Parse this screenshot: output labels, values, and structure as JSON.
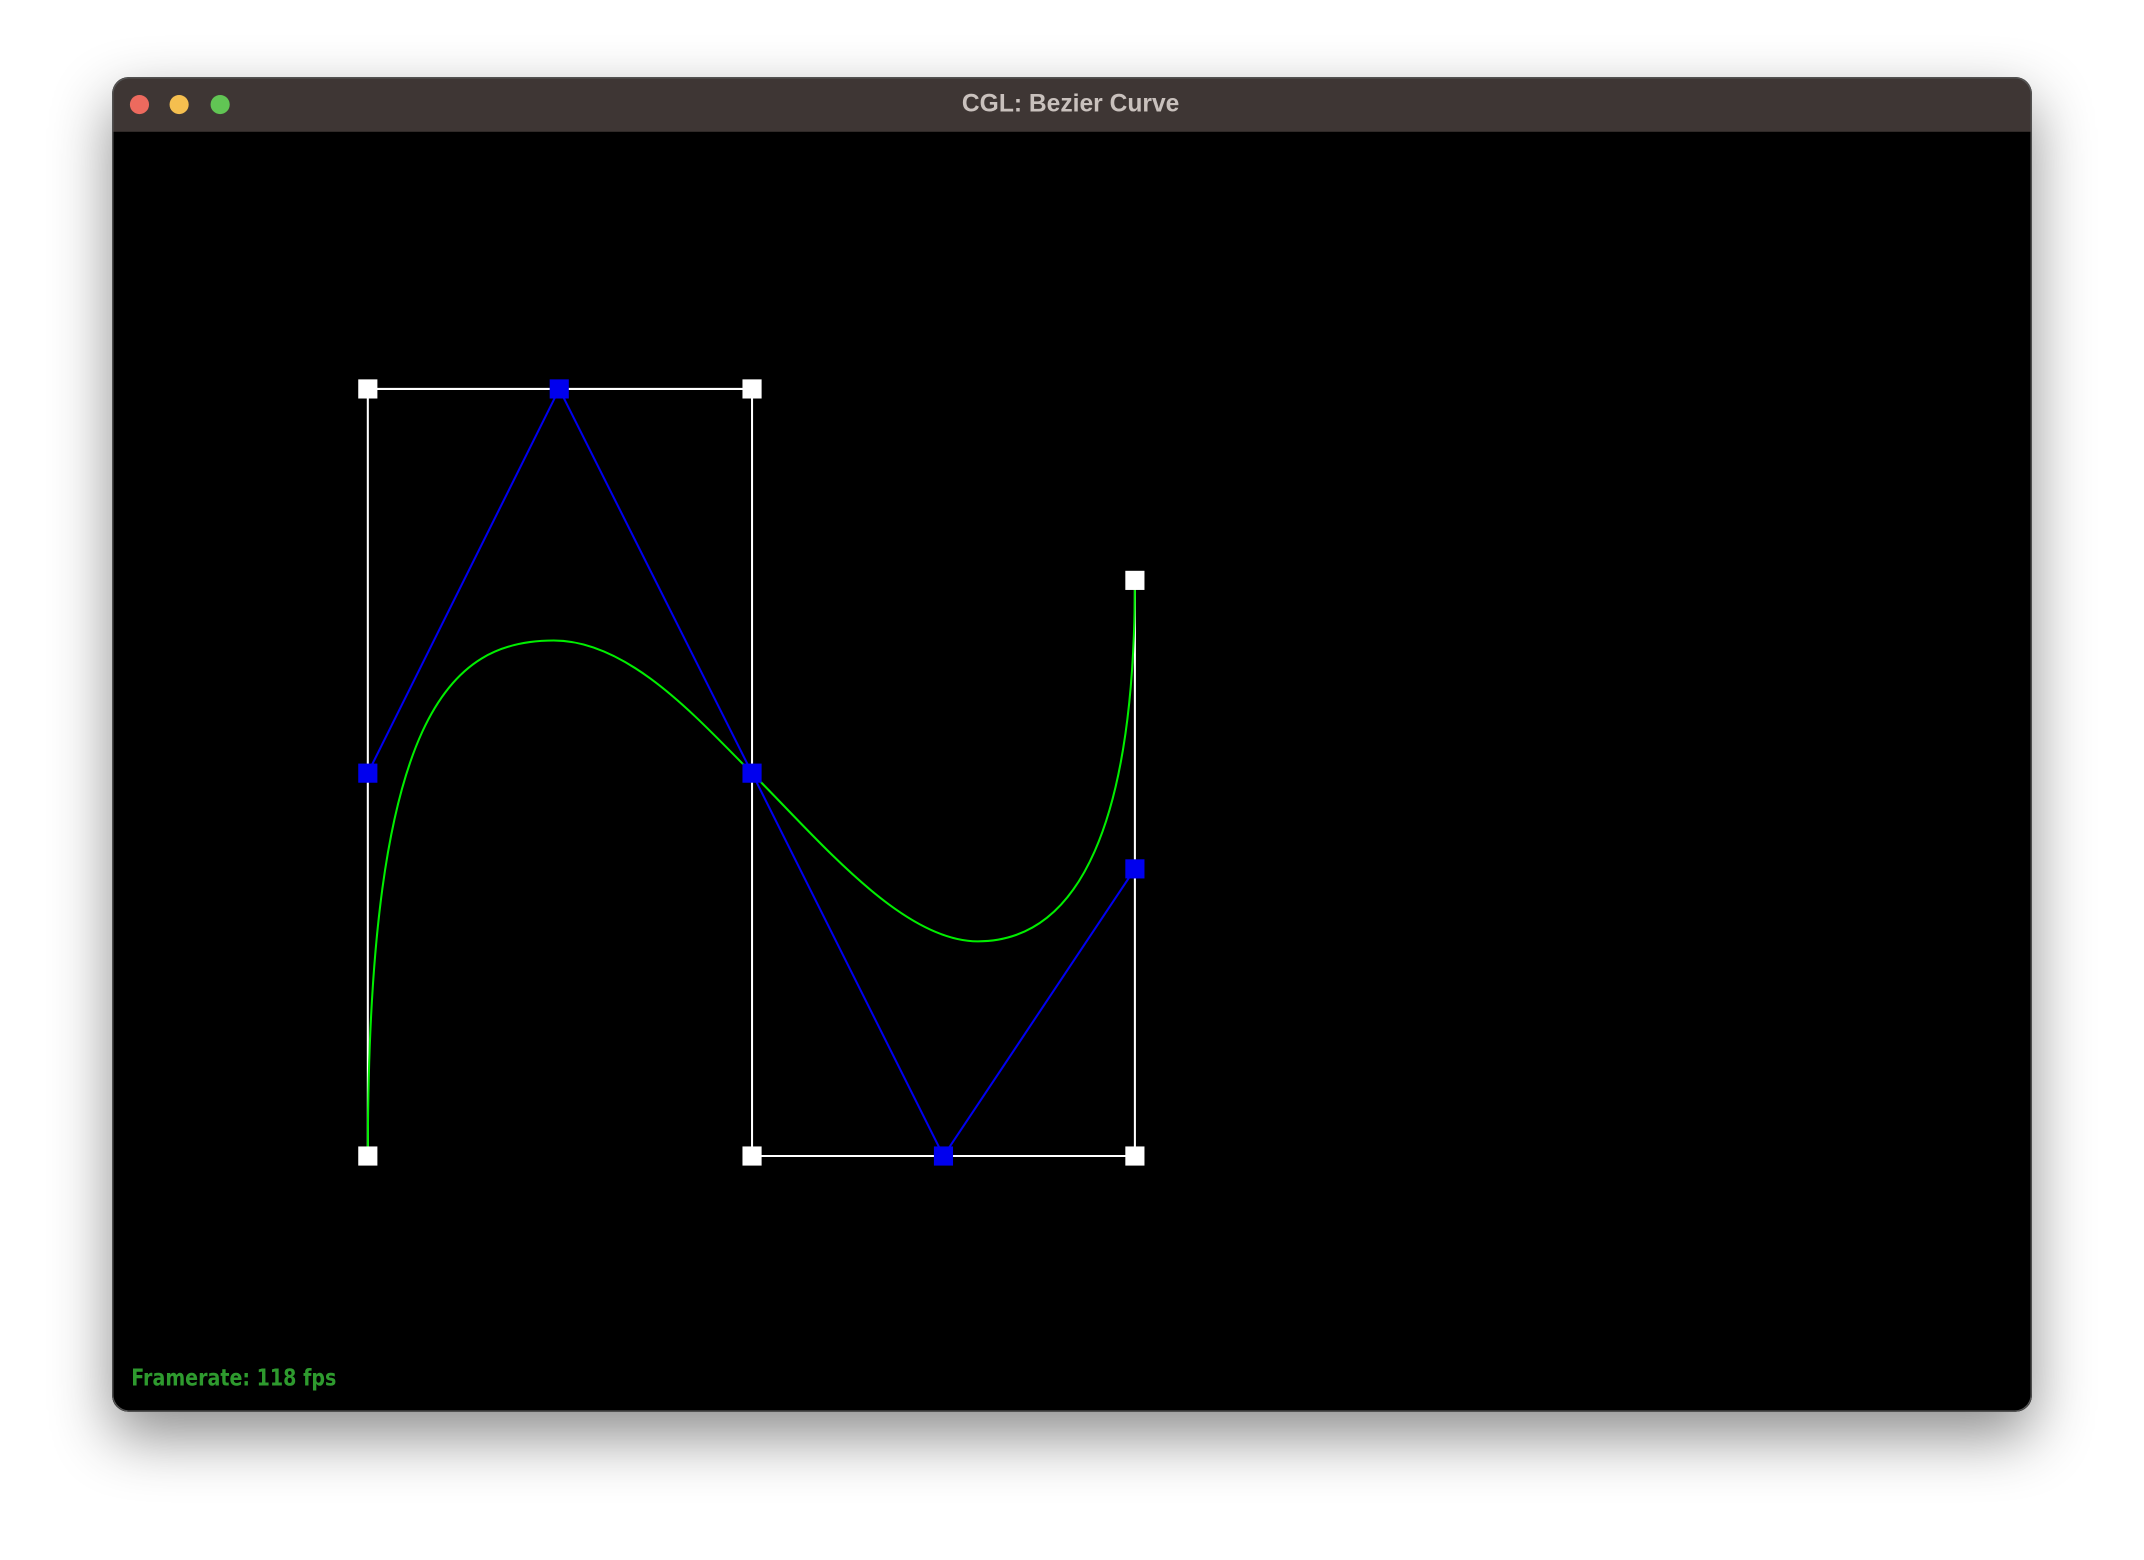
{
  "window": {
    "title": "CGL: Bezier Curve"
  },
  "status": {
    "framerate": "Framerate: 118 fps"
  }
}
